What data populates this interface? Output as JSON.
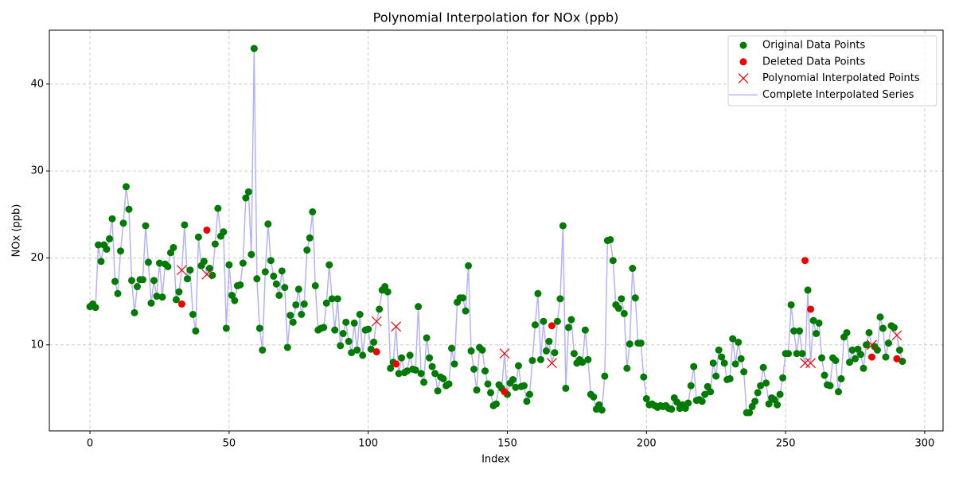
{
  "chart_data": {
    "type": "scatter",
    "title": "Polynomial Interpolation for NOx (ppb)",
    "x_label": "Index",
    "y_label": "NOx (ppb)",
    "xlim": [
      -14.6,
      306.6
    ],
    "ylim": [
      0.1,
      46.2
    ],
    "xticks": [
      0,
      50,
      100,
      150,
      200,
      250,
      300
    ],
    "yticks": [
      10,
      20,
      30,
      40
    ],
    "grid": true,
    "legend": "upper right",
    "x": [
      0,
      1,
      2,
      3,
      4,
      5,
      6,
      7,
      8,
      9,
      10,
      11,
      12,
      13,
      14,
      15,
      16,
      17,
      18,
      19,
      20,
      21,
      22,
      23,
      24,
      25,
      26,
      27,
      28,
      29,
      30,
      31,
      32,
      33,
      34,
      35,
      36,
      37,
      38,
      39,
      40,
      41,
      42,
      43,
      44,
      45,
      46,
      47,
      48,
      49,
      50,
      51,
      52,
      53,
      54,
      55,
      56,
      57,
      58,
      59,
      60,
      61,
      62,
      63,
      64,
      65,
      66,
      67,
      68,
      69,
      70,
      71,
      72,
      73,
      74,
      75,
      76,
      77,
      78,
      79,
      80,
      81,
      82,
      83,
      84,
      85,
      86,
      87,
      88,
      89,
      90,
      91,
      92,
      93,
      94,
      95,
      96,
      97,
      98,
      99,
      100,
      101,
      102,
      103,
      104,
      105,
      106,
      107,
      108,
      109,
      110,
      111,
      112,
      113,
      114,
      115,
      116,
      117,
      118,
      119,
      120,
      121,
      122,
      123,
      124,
      125,
      126,
      127,
      128,
      129,
      130,
      131,
      132,
      133,
      134,
      135,
      136,
      137,
      138,
      139,
      140,
      141,
      142,
      143,
      144,
      145,
      146,
      147,
      148,
      149,
      150,
      151,
      152,
      153,
      154,
      155,
      156,
      157,
      158,
      159,
      160,
      161,
      162,
      163,
      164,
      165,
      166,
      167,
      168,
      169,
      170,
      171,
      172,
      173,
      174,
      175,
      176,
      177,
      178,
      179,
      180,
      181,
      182,
      183,
      184,
      185,
      186,
      187,
      188,
      189,
      190,
      191,
      192,
      193,
      194,
      195,
      196,
      197,
      198,
      199,
      200,
      201,
      202,
      203,
      204,
      205,
      206,
      207,
      208,
      209,
      210,
      211,
      212,
      213,
      214,
      215,
      216,
      217,
      218,
      219,
      220,
      221,
      222,
      223,
      224,
      225,
      226,
      227,
      228,
      229,
      230,
      231,
      232,
      233,
      234,
      235,
      236,
      237,
      238,
      239,
      240,
      241,
      242,
      243,
      244,
      245,
      246,
      247,
      248,
      249,
      250,
      251,
      252,
      253,
      254,
      255,
      256,
      257,
      258,
      259,
      260,
      261,
      262,
      263,
      264,
      265,
      266,
      267,
      268,
      269,
      270,
      271,
      272,
      273,
      274,
      275,
      276,
      277,
      278,
      279,
      280,
      281,
      282,
      283,
      284,
      285,
      286,
      287,
      288,
      289,
      290,
      291,
      292
    ],
    "series": [
      {
        "name": "Complete Interpolated Series",
        "color": "#b3b3f5",
        "marker": "line",
        "values": [
          14.4,
          14.7,
          14.3,
          21.5,
          19.6,
          21.5,
          21.0,
          22.2,
          24.5,
          17.3,
          15.9,
          20.8,
          24.0,
          28.2,
          25.6,
          17.4,
          13.7,
          16.7,
          17.5,
          17.5,
          23.7,
          19.5,
          14.8,
          17.4,
          15.6,
          19.4,
          15.5,
          19.3,
          19.0,
          20.6,
          21.2,
          15.2,
          16.1,
          18.6,
          23.8,
          17.6,
          18.6,
          13.5,
          11.6,
          22.4,
          19.1,
          19.6,
          18.1,
          18.8,
          18.0,
          21.6,
          25.7,
          22.5,
          23.0,
          11.9,
          19.2,
          15.7,
          15.1,
          16.8,
          16.9,
          19.4,
          26.9,
          27.6,
          20.4,
          44.1,
          17.6,
          11.9,
          9.4,
          18.4,
          23.9,
          19.7,
          17.9,
          17.0,
          15.7,
          18.5,
          16.6,
          9.7,
          13.4,
          12.6,
          14.6,
          16.4,
          13.5,
          14.7,
          20.9,
          22.3,
          25.3,
          16.8,
          11.7,
          11.9,
          12.0,
          14.8,
          19.2,
          15.3,
          11.7,
          15.3,
          9.9,
          11.3,
          12.6,
          10.4,
          9.1,
          12.5,
          9.4,
          13.5,
          8.8,
          11.7,
          11.8,
          9.5,
          10.3,
          12.7,
          14.1,
          16.3,
          16.7,
          16.1,
          7.3,
          8.0,
          12.1,
          6.7,
          8.5,
          6.8,
          7.0,
          8.8,
          7.2,
          7.1,
          14.4,
          6.7,
          5.7,
          10.8,
          8.5,
          7.5,
          6.7,
          4.7,
          6.3,
          6.1,
          5.3,
          5.5,
          9.6,
          7.8,
          14.9,
          15.4,
          15.4,
          13.9,
          19.1,
          9.3,
          7.2,
          4.8,
          9.7,
          9.4,
          7.0,
          5.5,
          4.5,
          3.0,
          3.2,
          5.4,
          5.0,
          9.0,
          4.3,
          5.6,
          6.0,
          5.1,
          7.6,
          5.2,
          5.3,
          3.5,
          4.3,
          8.2,
          12.3,
          15.9,
          8.3,
          12.7,
          9.3,
          10.4,
          7.9,
          9.1,
          12.7,
          15.3,
          23.7,
          5.0,
          12.0,
          12.9,
          9.0,
          7.9,
          8.3,
          8.0,
          11.7,
          8.3,
          4.3,
          4.0,
          2.6,
          3.1,
          2.5,
          6.4,
          22.0,
          22.1,
          19.7,
          14.6,
          14.2,
          15.3,
          13.6,
          7.3,
          10.1,
          18.8,
          15.4,
          10.2,
          10.2,
          6.3,
          3.8,
          3.1,
          3.2,
          3.0,
          2.8,
          3.0,
          2.9,
          3.0,
          2.7,
          2.6,
          3.9,
          3.4,
          2.7,
          3.1,
          2.7,
          3.3,
          5.3,
          7.5,
          3.6,
          3.7,
          3.5,
          4.3,
          5.2,
          4.6,
          7.9,
          6.4,
          9.4,
          8.6,
          7.9,
          6.0,
          6.1,
          10.7,
          7.8,
          10.3,
          8.4,
          6.9,
          2.2,
          2.2,
          2.9,
          3.5,
          4.5,
          5.3,
          7.4,
          5.6,
          3.2,
          3.9,
          3.7,
          3.1,
          4.3,
          6.2,
          9.0,
          9.0,
          14.6,
          11.6,
          9.0,
          11.6,
          9.0,
          7.9,
          16.3,
          7.9,
          12.8,
          11.3,
          12.5,
          8.5,
          6.5,
          5.4,
          5.3,
          8.5,
          8.2,
          4.6,
          6.1,
          10.9,
          11.4,
          8.0,
          9.4,
          8.4,
          9.5,
          8.9,
          7.3,
          10.0,
          11.4,
          10.0,
          9.8,
          9.4,
          13.2,
          11.9,
          8.6,
          10.2,
          12.2,
          12.0,
          11.1,
          9.4,
          8.1
        ]
      },
      {
        "name": "Original Data Points",
        "color": "#007a00",
        "marker": "o",
        "values": [
          14.4,
          14.7,
          14.3,
          21.5,
          19.6,
          21.5,
          21.0,
          22.2,
          24.5,
          17.3,
          15.9,
          20.8,
          24.0,
          28.2,
          25.6,
          17.4,
          13.7,
          16.7,
          17.5,
          17.5,
          23.7,
          19.5,
          14.8,
          17.4,
          15.6,
          19.4,
          15.5,
          19.3,
          19.0,
          20.6,
          21.2,
          15.2,
          16.1,
          null,
          23.8,
          17.6,
          18.6,
          13.5,
          11.6,
          22.4,
          19.1,
          19.6,
          null,
          18.8,
          18.0,
          21.6,
          25.7,
          22.5,
          23.0,
          11.9,
          19.2,
          15.7,
          15.1,
          16.8,
          16.9,
          19.4,
          26.9,
          27.6,
          20.4,
          44.1,
          17.6,
          11.9,
          9.4,
          18.4,
          23.9,
          19.7,
          17.9,
          17.0,
          15.7,
          18.5,
          16.6,
          9.7,
          13.4,
          12.6,
          14.6,
          16.4,
          13.5,
          14.7,
          20.9,
          22.3,
          25.3,
          16.8,
          11.7,
          11.9,
          12.0,
          14.8,
          19.2,
          15.3,
          11.7,
          15.3,
          9.9,
          11.3,
          12.6,
          10.4,
          9.1,
          12.5,
          9.4,
          13.5,
          8.8,
          11.7,
          11.8,
          9.5,
          10.3,
          null,
          14.1,
          16.3,
          16.7,
          16.1,
          7.3,
          8.0,
          null,
          6.7,
          8.5,
          6.8,
          7.0,
          8.8,
          7.2,
          7.1,
          14.4,
          6.7,
          5.7,
          10.8,
          8.5,
          7.5,
          6.7,
          4.7,
          6.3,
          6.1,
          5.3,
          5.5,
          9.6,
          7.8,
          14.9,
          15.4,
          15.4,
          13.9,
          19.1,
          9.3,
          7.2,
          4.8,
          9.7,
          9.4,
          7.0,
          5.5,
          4.5,
          3.0,
          3.2,
          5.4,
          5.0,
          null,
          4.3,
          5.6,
          6.0,
          5.1,
          7.6,
          5.2,
          5.3,
          3.5,
          4.3,
          8.2,
          12.3,
          15.9,
          8.3,
          12.7,
          9.3,
          10.4,
          null,
          9.1,
          12.7,
          15.3,
          23.7,
          5.0,
          12.0,
          12.9,
          9.0,
          7.9,
          8.3,
          8.0,
          11.7,
          8.3,
          4.3,
          4.0,
          2.6,
          3.1,
          2.5,
          6.4,
          22.0,
          22.1,
          19.7,
          14.6,
          14.2,
          15.3,
          13.6,
          7.3,
          10.1,
          18.8,
          15.4,
          10.2,
          10.2,
          6.3,
          3.8,
          3.1,
          3.2,
          3.0,
          2.8,
          3.0,
          2.9,
          3.0,
          2.7,
          2.6,
          3.9,
          3.4,
          2.7,
          3.1,
          2.7,
          3.3,
          5.3,
          7.5,
          3.6,
          3.7,
          3.5,
          4.3,
          5.2,
          4.6,
          7.9,
          6.4,
          9.4,
          8.6,
          7.9,
          6.0,
          6.1,
          10.7,
          7.8,
          10.3,
          8.4,
          6.9,
          2.2,
          2.2,
          2.9,
          3.5,
          4.5,
          5.3,
          7.4,
          5.6,
          3.2,
          3.9,
          3.7,
          3.1,
          4.3,
          6.2,
          9.0,
          9.0,
          14.6,
          11.6,
          9.0,
          11.6,
          9.0,
          null,
          16.3,
          null,
          12.8,
          11.3,
          12.5,
          8.5,
          6.5,
          5.4,
          5.3,
          8.5,
          8.2,
          4.6,
          6.1,
          10.9,
          11.4,
          8.0,
          9.4,
          8.4,
          9.5,
          8.9,
          7.3,
          10.0,
          11.4,
          null,
          9.8,
          9.4,
          13.2,
          11.9,
          8.6,
          10.2,
          12.2,
          12.0,
          null,
          9.4,
          8.1
        ]
      },
      {
        "name": "Deleted Data Points",
        "color": "#ee0000",
        "marker": "o",
        "x": [
          33,
          42,
          103,
          110,
          149,
          166,
          257,
          259,
          281,
          290
        ],
        "values": [
          14.7,
          23.2,
          9.2,
          7.8,
          4.6,
          12.2,
          19.7,
          14.1,
          8.6,
          8.4
        ]
      },
      {
        "name": "Polynomial Interpolated Points",
        "color": "#ee0000",
        "marker": "x",
        "x": [
          33,
          42,
          103,
          110,
          149,
          166,
          257,
          259,
          281,
          290
        ],
        "values": [
          18.6,
          18.1,
          12.7,
          12.1,
          9.0,
          7.9,
          7.9,
          7.9,
          10.0,
          11.1
        ]
      }
    ]
  }
}
